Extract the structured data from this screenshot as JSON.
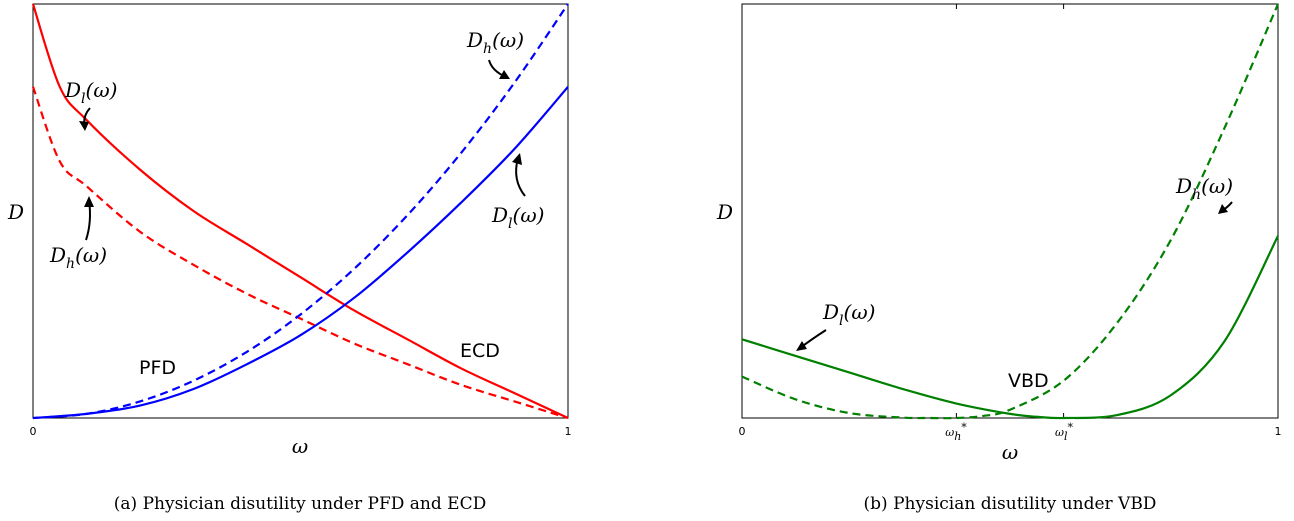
{
  "chart_data": [
    {
      "type": "line",
      "caption": "(a) Physician disutility under PFD and ECD",
      "xlabel": "ω",
      "ylabel": "D",
      "xlim": [
        0,
        1
      ],
      "ylim": [
        0,
        1
      ],
      "x_ticks": [
        "0",
        "1"
      ],
      "grid": false,
      "region_labels": [
        "PFD",
        "ECD"
      ],
      "series": [
        {
          "scheme": "PFD",
          "color": "#ff0000",
          "style": "solid",
          "x": [
            0,
            0.05,
            0.1,
            0.2,
            0.3,
            0.4,
            0.5,
            0.6,
            0.7,
            0.8,
            0.9,
            1.0
          ],
          "y": [
            1.0,
            0.8,
            0.72,
            0.6,
            0.5,
            0.42,
            0.34,
            0.26,
            0.19,
            0.12,
            0.06,
            0.0
          ]
        },
        {
          "scheme": "PFD",
          "color": "#ff0000",
          "style": "dashed",
          "x": [
            0,
            0.05,
            0.1,
            0.2,
            0.3,
            0.4,
            0.5,
            0.6,
            0.7,
            0.8,
            0.9,
            1.0
          ],
          "y": [
            0.8,
            0.62,
            0.56,
            0.45,
            0.37,
            0.3,
            0.24,
            0.18,
            0.13,
            0.08,
            0.04,
            0.0
          ]
        },
        {
          "scheme": "ECD",
          "color": "#0000ff",
          "style": "solid",
          "x": [
            0,
            0.1,
            0.2,
            0.3,
            0.4,
            0.5,
            0.6,
            0.7,
            0.8,
            0.9,
            1.0
          ],
          "y": [
            0.0,
            0.01,
            0.03,
            0.07,
            0.13,
            0.2,
            0.29,
            0.4,
            0.52,
            0.65,
            0.8
          ]
        },
        {
          "scheme": "ECD",
          "color": "#0000ff",
          "style": "dashed",
          "x": [
            0,
            0.1,
            0.2,
            0.3,
            0.4,
            0.5,
            0.6,
            0.7,
            0.8,
            0.9,
            1.0
          ],
          "y": [
            0.0,
            0.01,
            0.04,
            0.09,
            0.16,
            0.25,
            0.36,
            0.49,
            0.64,
            0.81,
            1.0
          ]
        }
      ],
      "annotations": [
        {
          "base": "D",
          "sub": "l",
          "arg": "(ω)",
          "points_to": "solid red curve"
        },
        {
          "base": "D",
          "sub": "h",
          "arg": "(ω)",
          "points_to": "dashed red curve"
        },
        {
          "base": "D",
          "sub": "h",
          "arg": "(ω)",
          "points_to": "dashed blue curve"
        },
        {
          "base": "D",
          "sub": "l",
          "arg": "(ω)",
          "points_to": "solid blue curve"
        }
      ]
    },
    {
      "type": "line",
      "caption": "(b) Physician disutility under VBD",
      "xlabel": "ω",
      "ylabel": "D",
      "xlim": [
        0,
        1
      ],
      "ylim": [
        0,
        1
      ],
      "x_ticks": [
        "0",
        "1"
      ],
      "x_marked": [
        {
          "base": "ω",
          "sub": "h",
          "sup": "*",
          "x": 0.4
        },
        {
          "base": "ω",
          "sub": "l",
          "sup": "*",
          "x": 0.6
        }
      ],
      "grid": false,
      "region_labels": [
        "VBD"
      ],
      "series": [
        {
          "color": "#008000",
          "style": "solid",
          "x": [
            0,
            0.1,
            0.2,
            0.3,
            0.4,
            0.5,
            0.55,
            0.6,
            0.7,
            0.8,
            0.9,
            1.0
          ],
          "y": [
            0.19,
            0.15,
            0.11,
            0.07,
            0.035,
            0.01,
            0.003,
            0.0,
            0.007,
            0.055,
            0.185,
            0.44
          ]
        },
        {
          "color": "#008000",
          "style": "dashed",
          "x": [
            0,
            0.1,
            0.2,
            0.3,
            0.35,
            0.4,
            0.45,
            0.5,
            0.6,
            0.7,
            0.8,
            0.9,
            1.0
          ],
          "y": [
            0.1,
            0.045,
            0.012,
            0.001,
            0.0,
            0.0,
            0.005,
            0.02,
            0.09,
            0.23,
            0.43,
            0.7,
            1.0
          ]
        }
      ],
      "annotations": [
        {
          "base": "D",
          "sub": "l",
          "arg": "(ω)",
          "points_to": "solid green curve"
        },
        {
          "base": "D",
          "sub": "h",
          "arg": "(ω)",
          "points_to": "dashed green curve"
        }
      ]
    }
  ]
}
